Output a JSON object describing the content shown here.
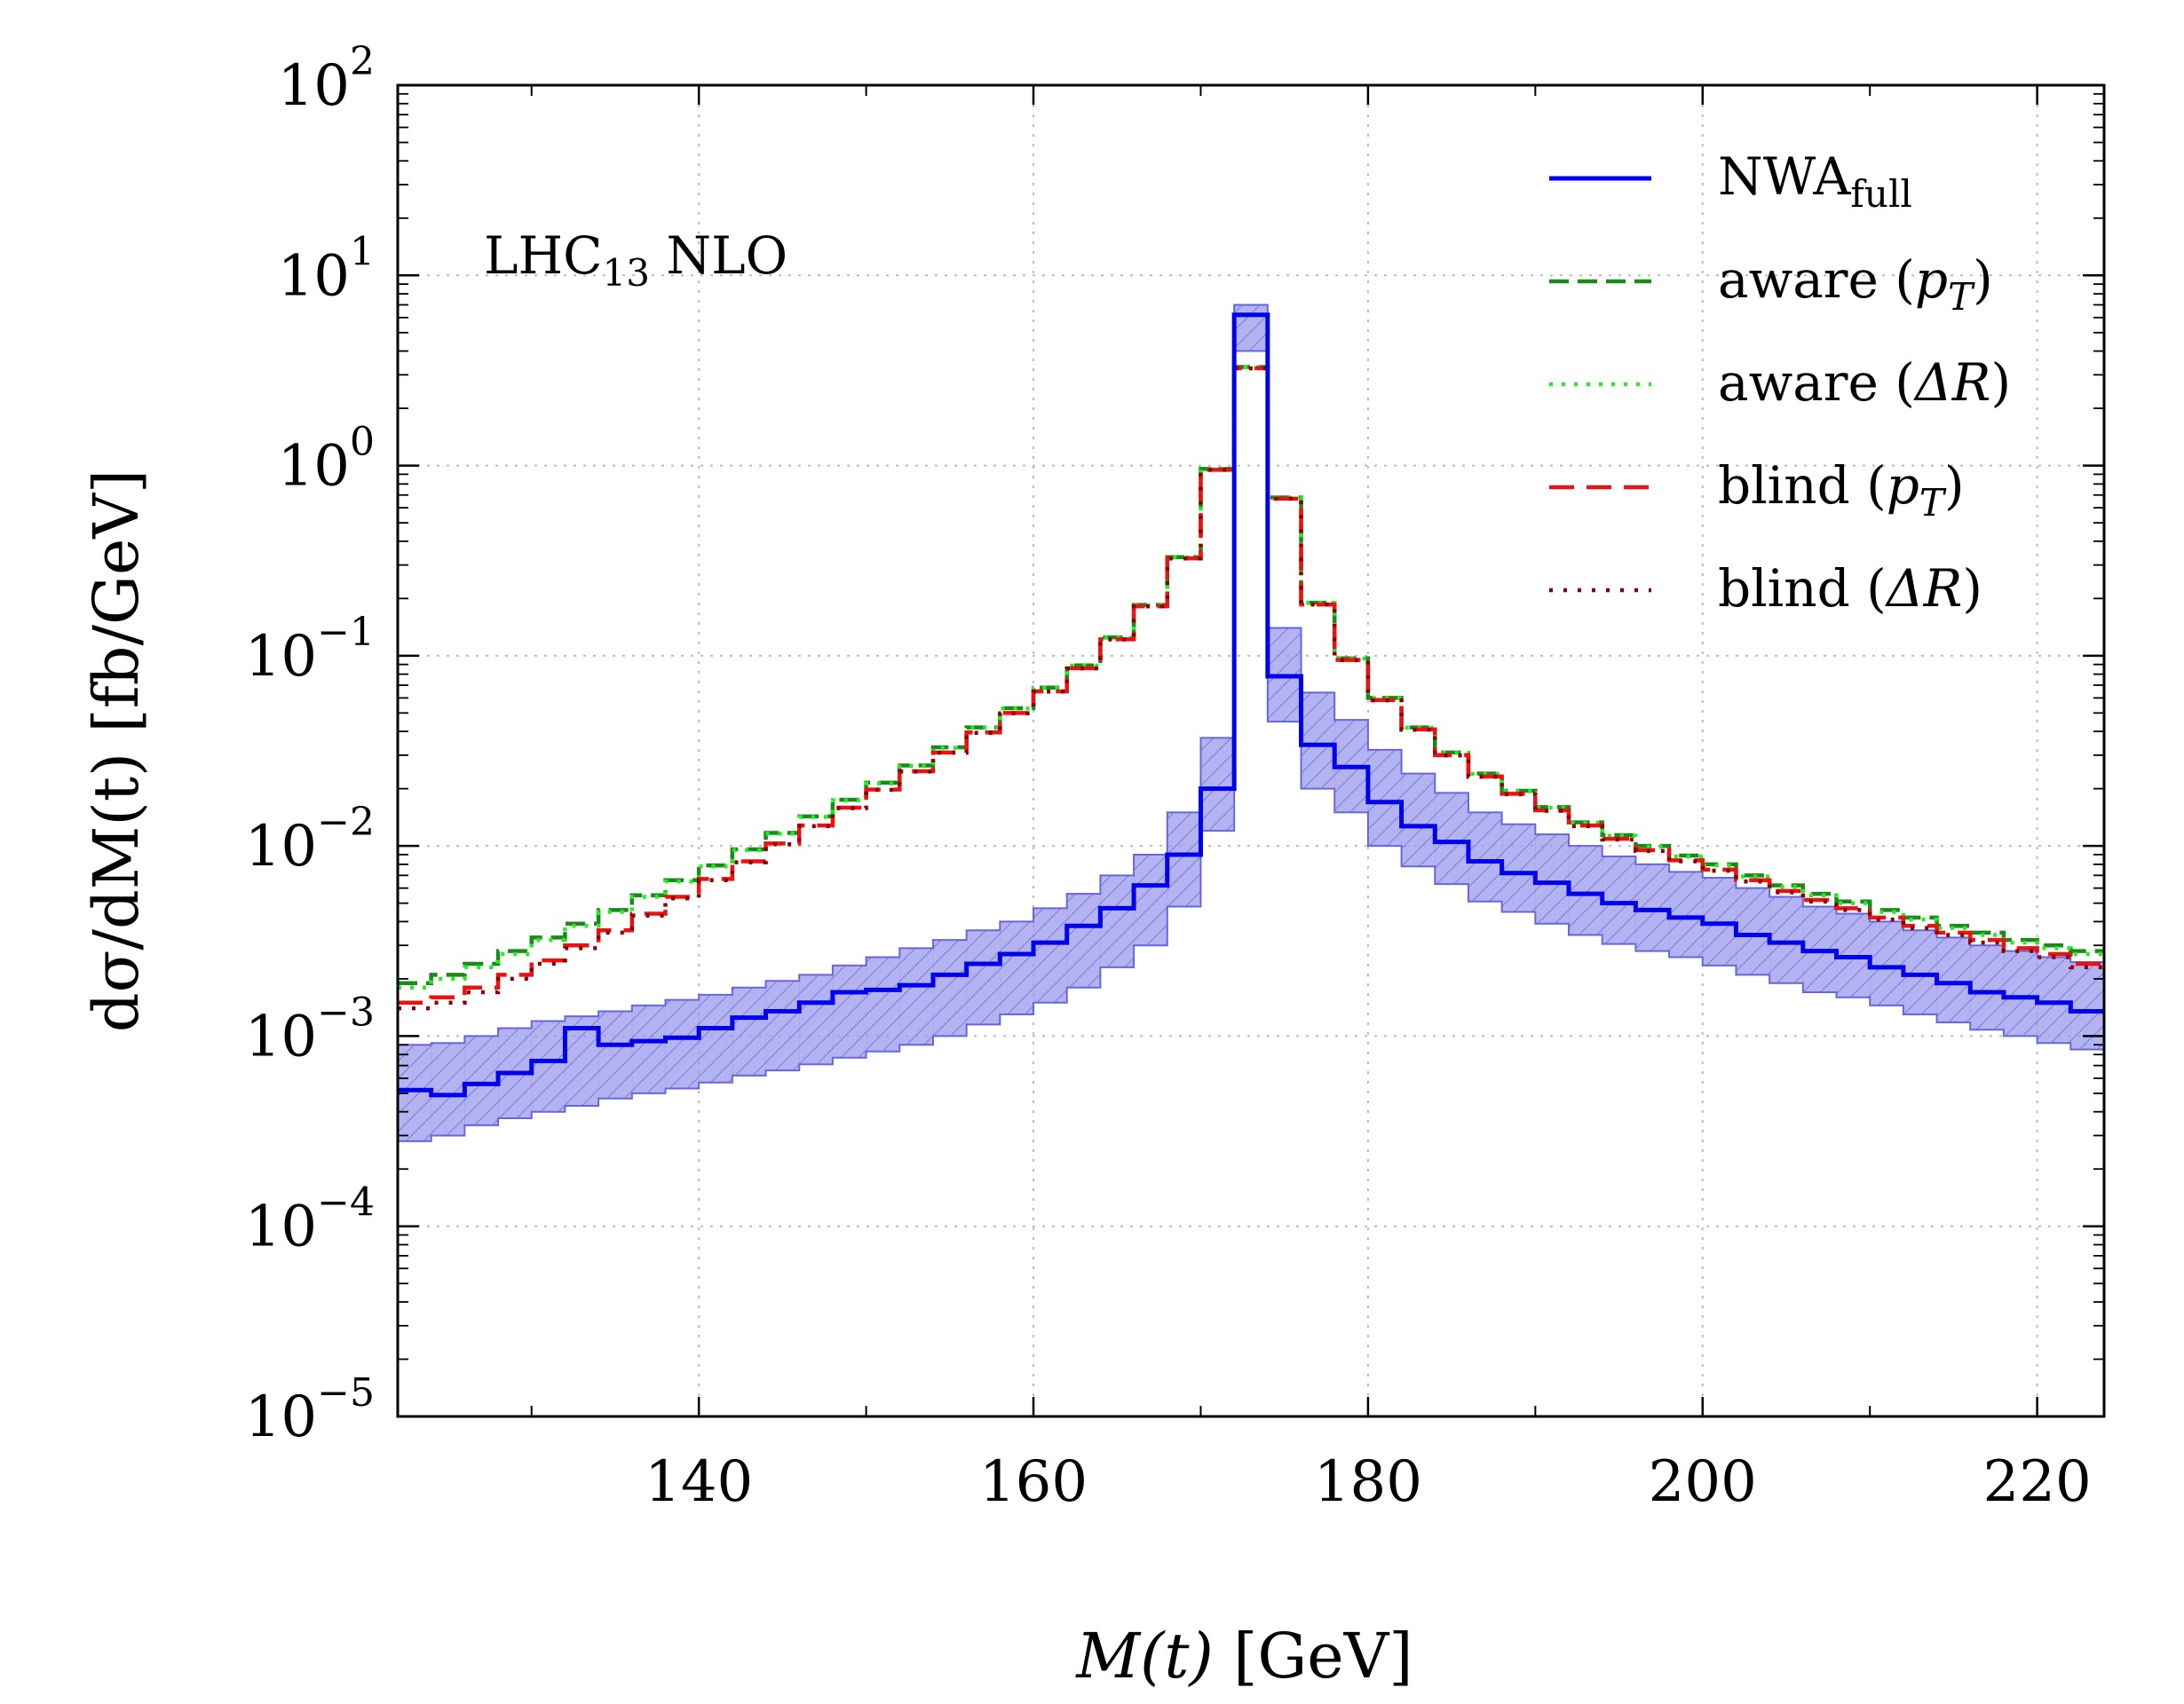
{
  "chart_data": {
    "type": "line",
    "subtype": "step-histogram",
    "annotation": {
      "main": "LHC",
      "sub": "13",
      "rest": " NLO"
    },
    "xlabel": {
      "pre": "M(t)",
      "post": " [GeV]"
    },
    "ylabel": {
      "text": "dσ/dM(t) [fb/GeV]"
    },
    "xlim": [
      122,
      224
    ],
    "ylim_log10": [
      -5,
      2
    ],
    "yscale": "log",
    "grid": true,
    "legend_position": "top-right",
    "x_ticks": [
      "140",
      "160",
      "180",
      "200",
      "220"
    ],
    "x_tick_values": [
      140,
      160,
      180,
      200,
      220
    ],
    "y_ticks": [
      {
        "base": "10",
        "exp": "2"
      },
      {
        "base": "10",
        "exp": "1"
      },
      {
        "base": "10",
        "exp": "0"
      },
      {
        "base": "10",
        "exp": "−1"
      },
      {
        "base": "10",
        "exp": "−2"
      },
      {
        "base": "10",
        "exp": "−3"
      },
      {
        "base": "10",
        "exp": "−4"
      },
      {
        "base": "10",
        "exp": "−5"
      }
    ],
    "y_tick_exponents": [
      2,
      1,
      0,
      -1,
      -2,
      -3,
      -4,
      -5
    ],
    "bin_edges": [
      122,
      124,
      126,
      128,
      130,
      132,
      134,
      136,
      138,
      140,
      142,
      144,
      146,
      148,
      150,
      152,
      154,
      156,
      158,
      160,
      162,
      164,
      166,
      168,
      170,
      172,
      174,
      176,
      178,
      180,
      182,
      184,
      186,
      188,
      190,
      192,
      194,
      196,
      198,
      200,
      202,
      204,
      206,
      208,
      210,
      212,
      214,
      216,
      218,
      220,
      222,
      224
    ],
    "series": [
      {
        "name": "NWA_full",
        "label_main": "NWA",
        "label_sub": "full",
        "color": "#0000ee",
        "dash": "",
        "values": [
          0.00052,
          0.00049,
          0.00056,
          0.00064,
          0.00074,
          0.0011,
          0.0009,
          0.00094,
          0.00098,
          0.0011,
          0.00125,
          0.00135,
          0.0015,
          0.0017,
          0.00175,
          0.00185,
          0.0021,
          0.0024,
          0.0027,
          0.0031,
          0.0038,
          0.0047,
          0.0062,
          0.009,
          0.02,
          6.2,
          0.078,
          0.034,
          0.026,
          0.017,
          0.0127,
          0.0105,
          0.0083,
          0.0072,
          0.0064,
          0.0056,
          0.005,
          0.0046,
          0.0042,
          0.0039,
          0.0034,
          0.0031,
          0.0028,
          0.0026,
          0.0023,
          0.0021,
          0.0019,
          0.0017,
          0.0016,
          0.0015,
          0.00135
        ],
        "band_low": [
          0.00028,
          0.0003,
          0.00034,
          0.00037,
          0.0004,
          0.00043,
          0.00047,
          0.0005,
          0.00053,
          0.00057,
          0.00062,
          0.00066,
          0.00071,
          0.00077,
          0.00083,
          0.0009,
          0.001,
          0.00115,
          0.0013,
          0.0015,
          0.0018,
          0.0023,
          0.003,
          0.0048,
          0.012,
          4.0,
          0.045,
          0.02,
          0.015,
          0.01,
          0.0078,
          0.0063,
          0.0051,
          0.0045,
          0.0039,
          0.0034,
          0.00305,
          0.0028,
          0.0026,
          0.00235,
          0.0021,
          0.0019,
          0.0017,
          0.0016,
          0.00145,
          0.0013,
          0.00118,
          0.00108,
          0.001,
          0.00092,
          0.00085
        ],
        "band_high": [
          0.0009,
          0.00092,
          0.001,
          0.0011,
          0.0012,
          0.00127,
          0.00135,
          0.00145,
          0.00155,
          0.00165,
          0.0018,
          0.00195,
          0.0021,
          0.00235,
          0.0026,
          0.0029,
          0.0032,
          0.0036,
          0.004,
          0.0047,
          0.0056,
          0.007,
          0.009,
          0.015,
          0.037,
          7.0,
          0.14,
          0.064,
          0.046,
          0.032,
          0.024,
          0.019,
          0.015,
          0.013,
          0.0115,
          0.01,
          0.0088,
          0.008,
          0.0073,
          0.0068,
          0.006,
          0.0054,
          0.0048,
          0.0044,
          0.004,
          0.0036,
          0.0033,
          0.003,
          0.0028,
          0.0026,
          0.00245
        ]
      },
      {
        "name": "aware (pT)",
        "label_main": "aware (",
        "label_var": "p",
        "label_sub": "T",
        "label_end": ")",
        "color": "#1a8a1a",
        "dash": "22,10",
        "values": [
          0.0019,
          0.0021,
          0.0024,
          0.0028,
          0.0033,
          0.0039,
          0.0046,
          0.0055,
          0.0066,
          0.0079,
          0.0096,
          0.0117,
          0.0143,
          0.0175,
          0.0215,
          0.0265,
          0.033,
          0.042,
          0.053,
          0.068,
          0.089,
          0.125,
          0.185,
          0.33,
          0.96,
          3.3,
          0.68,
          0.19,
          0.097,
          0.06,
          0.042,
          0.031,
          0.024,
          0.0195,
          0.016,
          0.0133,
          0.0114,
          0.01,
          0.0089,
          0.008,
          0.007,
          0.0062,
          0.0056,
          0.0051,
          0.0046,
          0.0042,
          0.0038,
          0.0035,
          0.0032,
          0.003,
          0.0028
        ]
      },
      {
        "name": "aware (ΔR)",
        "label_main": "aware (",
        "label_var": "ΔR",
        "label_sub": "",
        "label_end": ")",
        "color": "#22ee22",
        "dash": "4,10",
        "values": [
          0.0018,
          0.002,
          0.0023,
          0.0027,
          0.0032,
          0.0038,
          0.0045,
          0.0054,
          0.0065,
          0.0078,
          0.0095,
          0.0116,
          0.0142,
          0.0174,
          0.0213,
          0.0263,
          0.0328,
          0.0418,
          0.0528,
          0.0678,
          0.0887,
          0.1245,
          0.1842,
          0.329,
          0.958,
          3.29,
          0.679,
          0.1895,
          0.0965,
          0.0598,
          0.0418,
          0.0309,
          0.0239,
          0.0194,
          0.0159,
          0.0132,
          0.0113,
          0.0099,
          0.0088,
          0.0079,
          0.0069,
          0.0061,
          0.0055,
          0.005,
          0.0045,
          0.0041,
          0.0037,
          0.0034,
          0.0031,
          0.0029,
          0.0027
        ]
      },
      {
        "name": "blind (pT)",
        "label_main": "blind (",
        "label_var": "p",
        "label_sub": "T",
        "label_end": ")",
        "color": "#ee1111",
        "dash": "28,14",
        "values": [
          0.0015,
          0.0016,
          0.0018,
          0.0021,
          0.0025,
          0.003,
          0.0036,
          0.0044,
          0.0054,
          0.0067,
          0.0083,
          0.0103,
          0.0128,
          0.0159,
          0.0198,
          0.0247,
          0.031,
          0.0395,
          0.05,
          0.065,
          0.086,
          0.122,
          0.182,
          0.325,
          0.95,
          3.25,
          0.67,
          0.186,
          0.095,
          0.0585,
          0.041,
          0.03,
          0.0232,
          0.0188,
          0.0154,
          0.0128,
          0.0109,
          0.0095,
          0.0084,
          0.0075,
          0.0066,
          0.0058,
          0.0052,
          0.0047,
          0.0042,
          0.0038,
          0.0035,
          0.0032,
          0.0029,
          0.0027,
          0.0024
        ]
      },
      {
        "name": "blind (ΔR)",
        "label_main": "blind (",
        "label_var": "ΔR",
        "label_sub": "",
        "label_end": ")",
        "color": "#8b0000",
        "dash": "4,12",
        "values": [
          0.0014,
          0.0015,
          0.0017,
          0.002,
          0.0024,
          0.0029,
          0.0035,
          0.0043,
          0.0053,
          0.0066,
          0.0082,
          0.0102,
          0.0127,
          0.0158,
          0.0197,
          0.0246,
          0.0309,
          0.0393,
          0.0498,
          0.0648,
          0.0858,
          0.1218,
          0.1818,
          0.3248,
          0.9498,
          3.248,
          0.6698,
          0.1858,
          0.0948,
          0.0583,
          0.0408,
          0.0299,
          0.0231,
          0.0187,
          0.0153,
          0.0127,
          0.0108,
          0.0094,
          0.0083,
          0.0074,
          0.0065,
          0.0057,
          0.0051,
          0.0046,
          0.0041,
          0.0037,
          0.0034,
          0.0031,
          0.0028,
          0.0026,
          0.0023
        ]
      }
    ]
  }
}
